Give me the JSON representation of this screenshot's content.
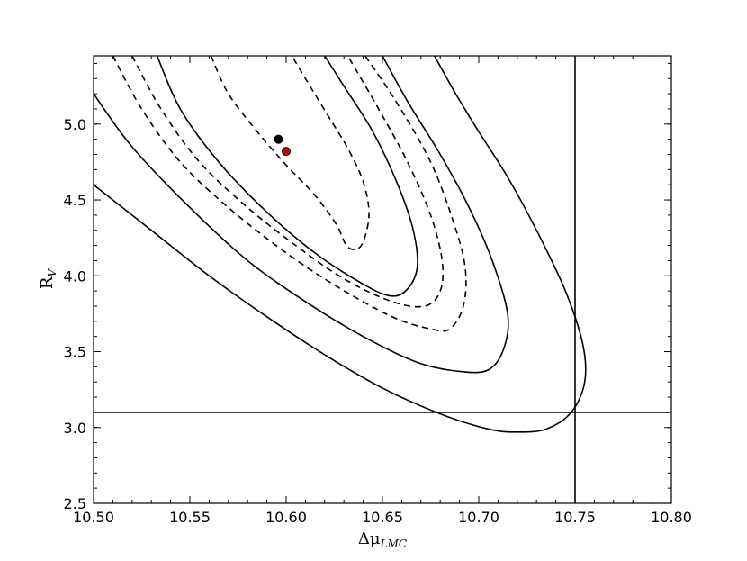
{
  "chart_data": {
    "type": "line",
    "xlim": [
      10.5,
      10.8
    ],
    "ylim": [
      2.5,
      5.45
    ],
    "xticks": [
      10.5,
      10.55,
      10.6,
      10.65,
      10.7,
      10.75,
      10.8
    ],
    "yticks": [
      2.5,
      3.0,
      3.5,
      4.0,
      4.5,
      5.0
    ],
    "xtick_labels": [
      "10.50",
      "10.55",
      "10.60",
      "10.65",
      "10.70",
      "10.75",
      "10.80"
    ],
    "ytick_labels": [
      "2.5",
      "3.0",
      "3.5",
      "4.0",
      "4.5",
      "5.0"
    ],
    "xlabel": {
      "main": "Δμ",
      "sub": "LMC"
    },
    "ylabel": {
      "main": "R",
      "sub": "V"
    },
    "grid": false,
    "reference_lines": [
      {
        "orientation": "vertical",
        "x": 10.75
      },
      {
        "orientation": "horizontal",
        "y": 3.1
      }
    ],
    "points": [
      {
        "x": 10.596,
        "y": 4.9,
        "color": "#000000"
      },
      {
        "x": 10.6,
        "y": 4.82,
        "color": "#cc0000"
      }
    ],
    "contours": [
      {
        "style": "dashed",
        "points": [
          [
            10.561,
            5.45
          ],
          [
            10.57,
            5.2
          ],
          [
            10.585,
            4.95
          ],
          [
            10.6,
            4.73
          ],
          [
            10.615,
            4.53
          ],
          [
            10.626,
            4.34
          ],
          [
            10.632,
            4.19
          ],
          [
            10.639,
            4.2
          ],
          [
            10.643,
            4.4
          ],
          [
            10.64,
            4.62
          ],
          [
            10.632,
            4.84
          ],
          [
            10.622,
            5.05
          ],
          [
            10.61,
            5.3
          ],
          [
            10.603,
            5.45
          ]
        ]
      },
      {
        "style": "solid",
        "points": [
          [
            10.533,
            5.45
          ],
          [
            10.545,
            5.1
          ],
          [
            10.565,
            4.75
          ],
          [
            10.59,
            4.42
          ],
          [
            10.615,
            4.15
          ],
          [
            10.638,
            3.96
          ],
          [
            10.653,
            3.87
          ],
          [
            10.662,
            3.9
          ],
          [
            10.668,
            4.05
          ],
          [
            10.666,
            4.3
          ],
          [
            10.658,
            4.6
          ],
          [
            10.645,
            4.95
          ],
          [
            10.63,
            5.25
          ],
          [
            10.62,
            5.45
          ]
        ]
      },
      {
        "style": "dashed",
        "points": [
          [
            10.52,
            5.45
          ],
          [
            10.535,
            5.1
          ],
          [
            10.555,
            4.75
          ],
          [
            10.58,
            4.45
          ],
          [
            10.605,
            4.2
          ],
          [
            10.63,
            3.98
          ],
          [
            10.655,
            3.83
          ],
          [
            10.672,
            3.8
          ],
          [
            10.68,
            3.9
          ],
          [
            10.681,
            4.1
          ],
          [
            10.675,
            4.4
          ],
          [
            10.663,
            4.75
          ],
          [
            10.648,
            5.1
          ],
          [
            10.632,
            5.45
          ]
        ]
      },
      {
        "style": "dashed",
        "points": [
          [
            10.51,
            5.45
          ],
          [
            10.525,
            5.1
          ],
          [
            10.545,
            4.75
          ],
          [
            10.57,
            4.45
          ],
          [
            10.598,
            4.17
          ],
          [
            10.625,
            3.94
          ],
          [
            10.655,
            3.73
          ],
          [
            10.675,
            3.65
          ],
          [
            10.685,
            3.65
          ],
          [
            10.692,
            3.8
          ],
          [
            10.693,
            4.05
          ],
          [
            10.687,
            4.35
          ],
          [
            10.675,
            4.75
          ],
          [
            10.657,
            5.15
          ],
          [
            10.641,
            5.45
          ]
        ]
      },
      {
        "style": "solid",
        "points": [
          [
            10.5,
            5.2
          ],
          [
            10.52,
            4.85
          ],
          [
            10.55,
            4.45
          ],
          [
            10.58,
            4.1
          ],
          [
            10.61,
            3.83
          ],
          [
            10.64,
            3.6
          ],
          [
            10.668,
            3.43
          ],
          [
            10.69,
            3.37
          ],
          [
            10.705,
            3.38
          ],
          [
            10.713,
            3.52
          ],
          [
            10.715,
            3.75
          ],
          [
            10.707,
            4.1
          ],
          [
            10.695,
            4.45
          ],
          [
            10.68,
            4.8
          ],
          [
            10.663,
            5.15
          ],
          [
            10.65,
            5.45
          ]
        ]
      },
      {
        "style": "solid",
        "points": [
          [
            10.5,
            4.6
          ],
          [
            10.53,
            4.3
          ],
          [
            10.56,
            4.0
          ],
          [
            10.59,
            3.73
          ],
          [
            10.62,
            3.48
          ],
          [
            10.65,
            3.26
          ],
          [
            10.68,
            3.09
          ],
          [
            10.705,
            2.99
          ],
          [
            10.72,
            2.97
          ],
          [
            10.735,
            2.99
          ],
          [
            10.748,
            3.1
          ],
          [
            10.755,
            3.3
          ],
          [
            10.754,
            3.55
          ],
          [
            10.745,
            3.9
          ],
          [
            10.73,
            4.3
          ],
          [
            10.715,
            4.65
          ],
          [
            10.7,
            4.95
          ],
          [
            10.688,
            5.2
          ],
          [
            10.677,
            5.45
          ]
        ]
      }
    ]
  }
}
